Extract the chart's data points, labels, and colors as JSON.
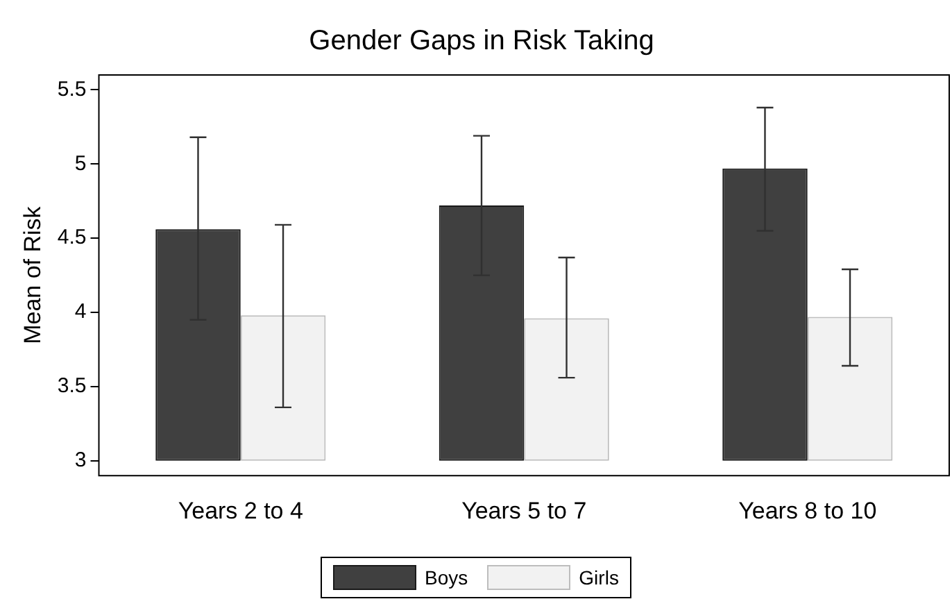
{
  "chart_data": {
    "type": "bar",
    "title": "Gender Gaps in Risk Taking",
    "ylabel": "Mean of Risk",
    "categories": [
      "Years 2 to 4",
      "Years 5 to 7",
      "Years 8 to 10"
    ],
    "series": [
      {
        "name": "Boys",
        "color": "#404040",
        "base": [
          3,
          3,
          3
        ],
        "values": [
          1.56,
          1.72,
          1.97
        ],
        "errors": [
          [
            3.95,
            5.18
          ],
          [
            4.25,
            5.19
          ],
          [
            4.55,
            5.38
          ]
        ]
      },
      {
        "name": "Girls",
        "color": "#f2f2f2",
        "base": [
          3,
          3,
          3
        ],
        "values": [
          0.98,
          0.96,
          0.97
        ],
        "errors": [
          [
            3.36,
            4.59
          ],
          [
            3.56,
            4.37
          ],
          [
            3.64,
            4.29
          ]
        ]
      }
    ],
    "ylim": [
      2.9,
      5.6
    ],
    "yticks": [
      3,
      3.5,
      4,
      4.5,
      5,
      5.5
    ],
    "grid": false,
    "legend": "bottom"
  }
}
